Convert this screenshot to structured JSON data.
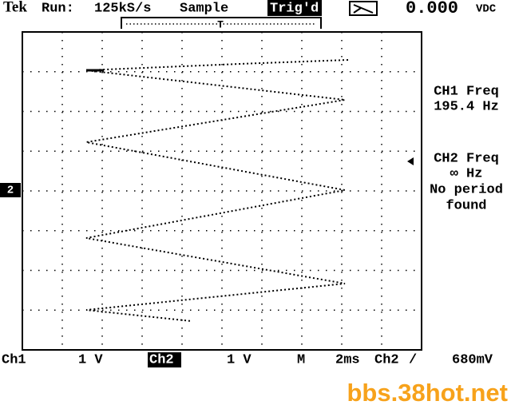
{
  "header": {
    "brand": "Tek",
    "run_label": "Run:",
    "sample_rate": "125kS/s",
    "mode": "Sample",
    "trigger_status": "Trig'd",
    "reading": "0.000",
    "reading_unit": "VDC",
    "trigger_marker": "T"
  },
  "measurements": [
    {
      "label": "CH1 Freq",
      "lines": [
        "195.4 Hz"
      ]
    },
    {
      "label": "CH2 Freq",
      "lines": [
        "∞ Hz",
        "No period",
        "found"
      ]
    }
  ],
  "left_marker": "2",
  "footer": {
    "ch1": "Ch1",
    "ch1_scale": "1 V",
    "ch2": "Ch2",
    "ch2_scale": "1 V",
    "m_label": "M",
    "timebase": "2ms",
    "trigger_source": "Ch2",
    "trigger_slope": "/",
    "trigger_level": "680mV"
  },
  "watermark": "bbs.38hot.net"
}
